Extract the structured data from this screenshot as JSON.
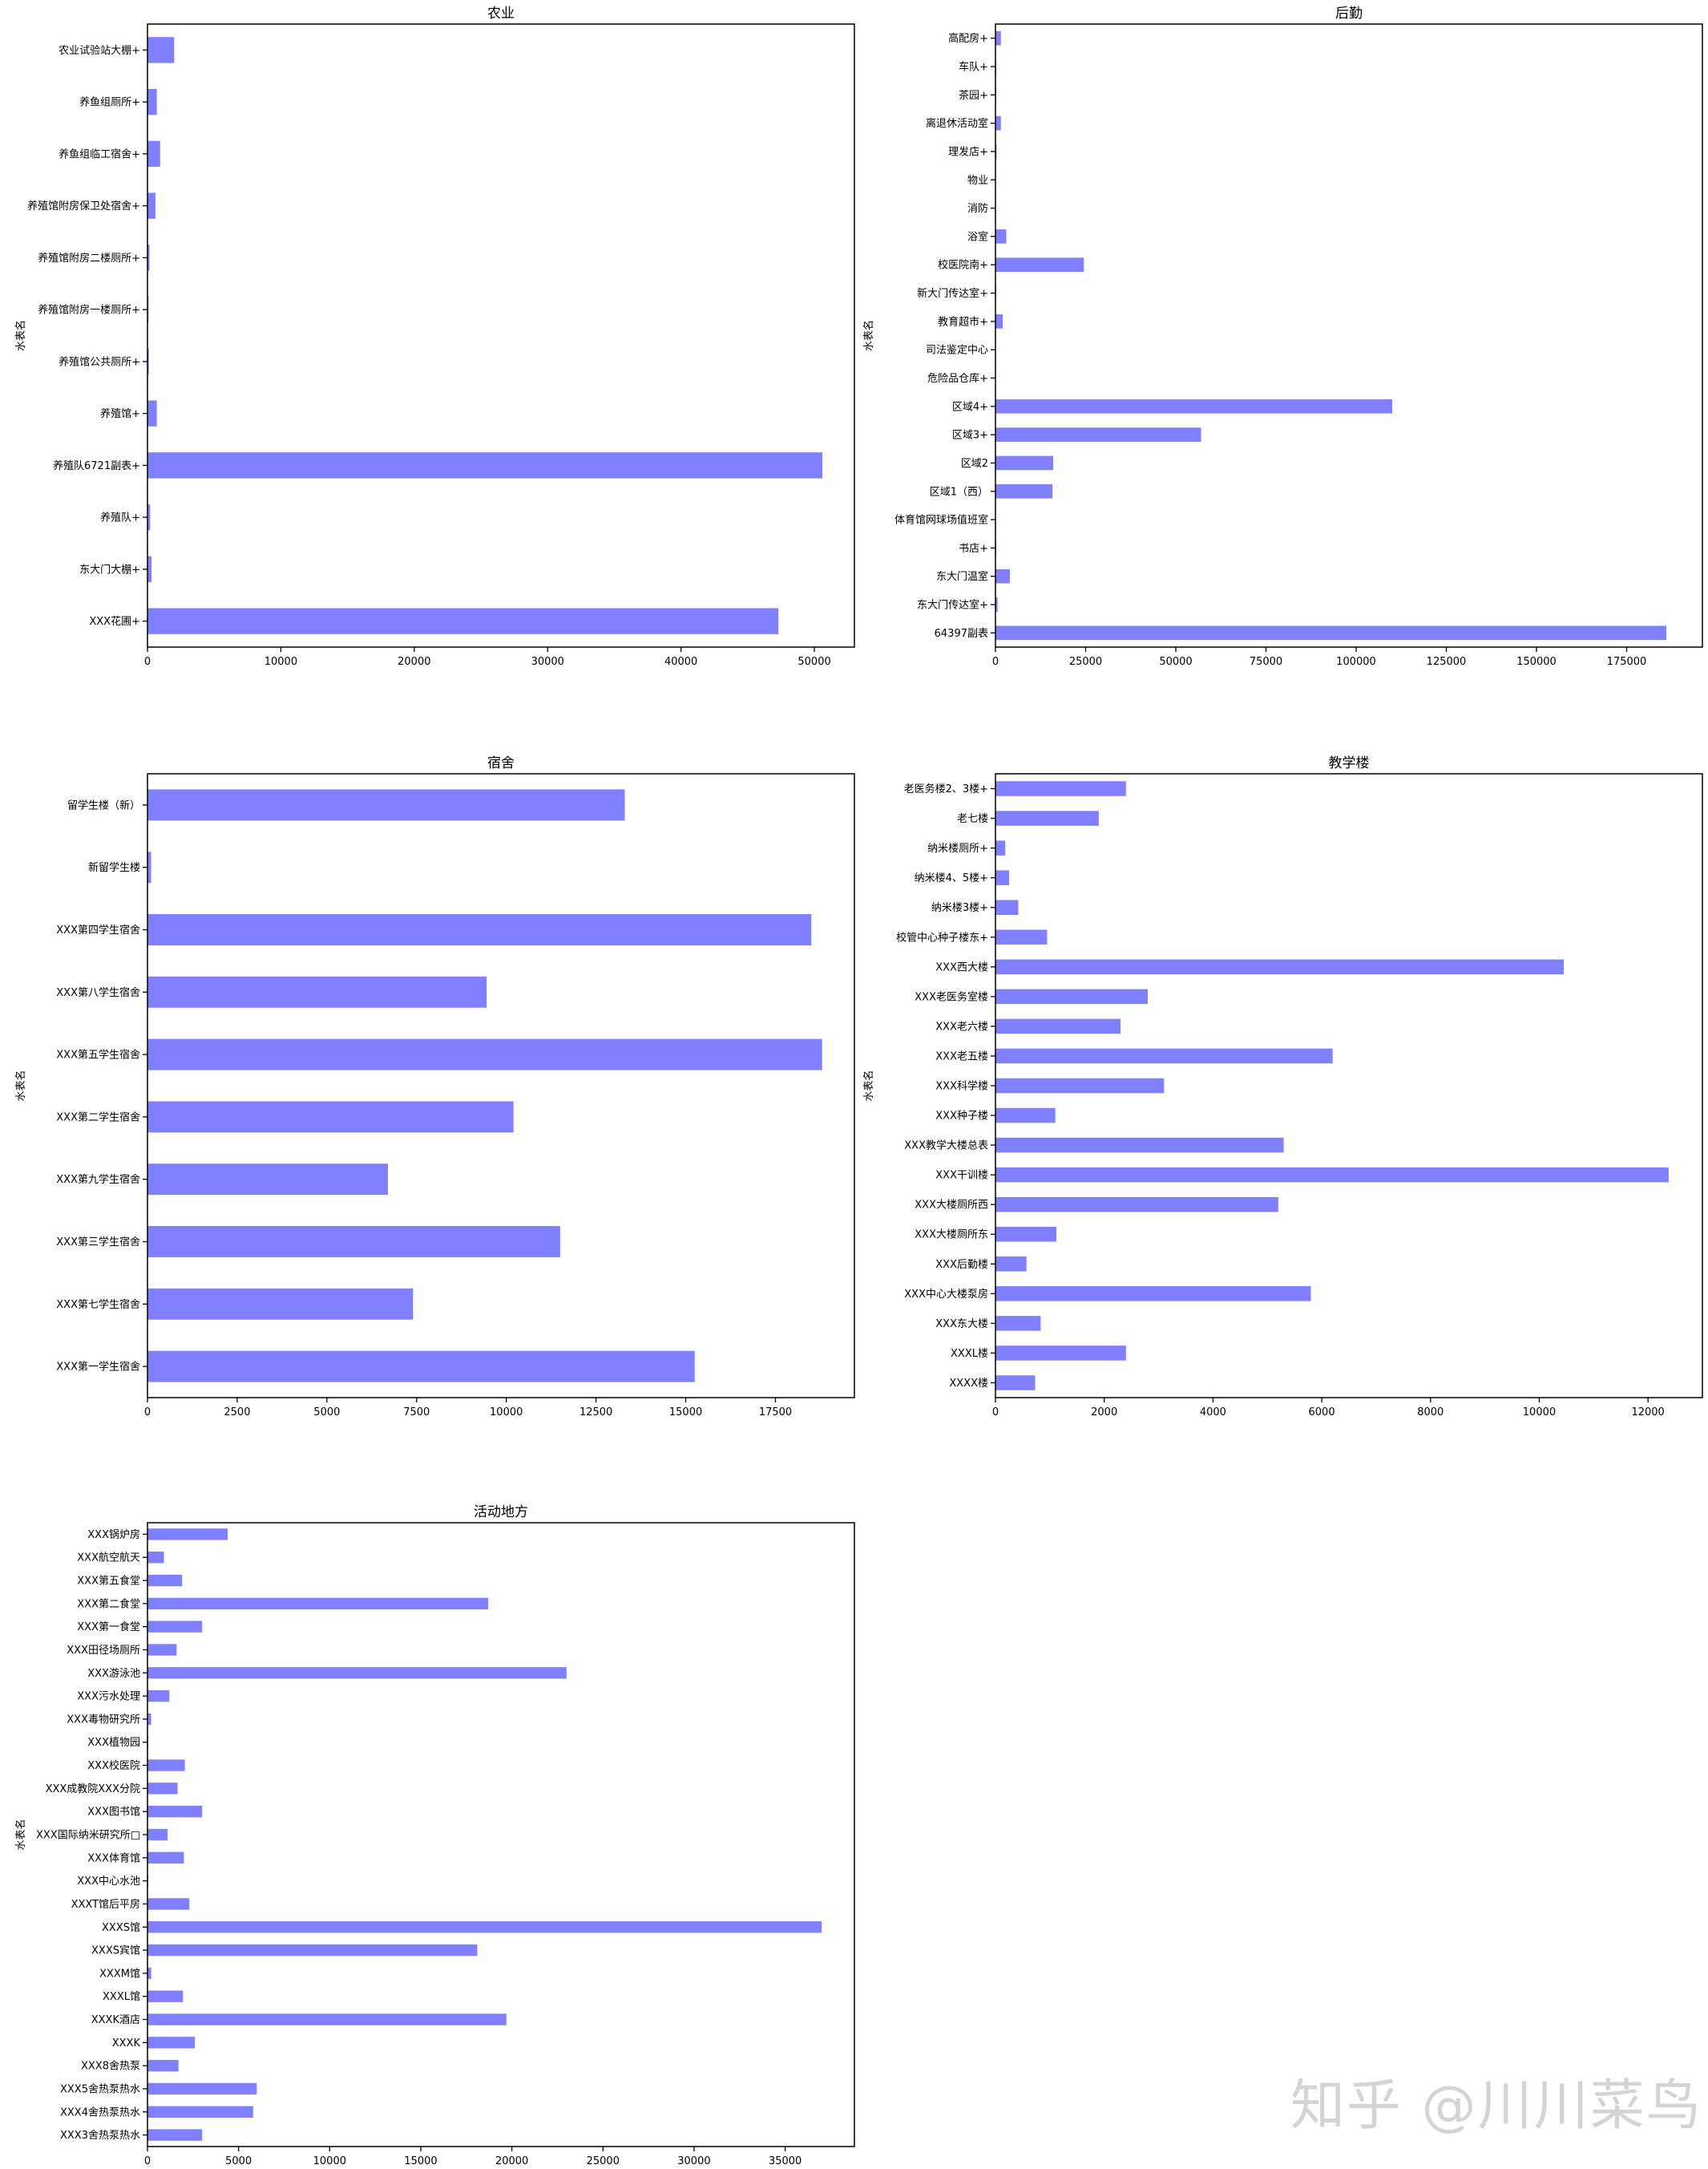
{
  "colors": {
    "bar": "#8080ff",
    "axis": "#000000",
    "background": "#ffffff"
  },
  "watermark": "知乎 @川川菜鸟",
  "chart_data": [
    {
      "type": "bar",
      "orientation": "horizontal",
      "title": "农业",
      "ylabel": "水表名",
      "xlabel": "",
      "xlim": [
        0,
        53000
      ],
      "xticks": [
        0,
        10000,
        20000,
        30000,
        40000,
        50000
      ],
      "categories": [
        "农业试验站大棚+",
        "养鱼组厕所+",
        "养鱼组临工宿舍+",
        "养殖馆附房保卫处宿舍+",
        "养殖馆附房二楼厕所+",
        "养殖馆附房一楼厕所+",
        "养殖馆公共厕所+",
        "养殖馆+",
        "养殖队6721副表+",
        "养殖队+",
        "东大门大棚+",
        "XXX花圃+"
      ],
      "values": [
        2000,
        700,
        950,
        600,
        150,
        80,
        100,
        700,
        50600,
        200,
        300,
        47300
      ]
    },
    {
      "type": "bar",
      "orientation": "horizontal",
      "title": "后勤",
      "ylabel": "水表名",
      "xlabel": "",
      "xlim": [
        0,
        196000
      ],
      "xticks": [
        0,
        25000,
        50000,
        75000,
        100000,
        125000,
        150000,
        175000
      ],
      "categories": [
        "高配房+",
        "车队+",
        "茶园+",
        "离退休活动室",
        "理发店+",
        "物业",
        "消防",
        "浴室",
        "校医院南+",
        "新大门传达室+",
        "教育超市+",
        "司法鉴定中心",
        "危险品仓库+",
        "区域4+",
        "区域3+",
        "区域2",
        "区域1（西）",
        "体育馆网球场值班室",
        "书店+",
        "东大门温室",
        "东大门传达室+",
        "64397副表"
      ],
      "values": [
        1500,
        200,
        200,
        1500,
        300,
        100,
        100,
        3000,
        24500,
        200,
        2000,
        100,
        100,
        110000,
        57000,
        16000,
        15800,
        100,
        200,
        4000,
        600,
        186000
      ]
    },
    {
      "type": "bar",
      "orientation": "horizontal",
      "title": "宿舍",
      "ylabel": "水表名",
      "xlabel": "",
      "xlim": [
        0,
        19700
      ],
      "xticks": [
        0,
        2500,
        5000,
        7500,
        10000,
        12500,
        15000,
        17500
      ],
      "categories": [
        "留学生楼（新）",
        "新留学生楼",
        "XXX第四学生宿舍",
        "XXX第八学生宿舍",
        "XXX第五学生宿舍",
        "XXX第二学生宿舍",
        "XXX第九学生宿舍",
        "XXX第三学生宿舍",
        "XXX第七学生宿舍",
        "XXX第一学生宿舍"
      ],
      "values": [
        13300,
        100,
        18500,
        9450,
        18800,
        10200,
        6700,
        11500,
        7400,
        15250
      ]
    },
    {
      "type": "bar",
      "orientation": "horizontal",
      "title": "教学楼",
      "ylabel": "水表名",
      "xlabel": "",
      "xlim": [
        0,
        13000
      ],
      "xticks": [
        0,
        2000,
        4000,
        6000,
        8000,
        10000,
        12000
      ],
      "categories": [
        "老医务楼2、3楼+",
        "老七楼",
        "纳米楼厕所+",
        "纳米楼4、5楼+",
        "纳米楼3楼+",
        "校管中心种子楼东+",
        "XXX西大楼",
        "XXX老医务室楼",
        "XXX老六楼",
        "XXX老五楼",
        "XXX科学楼",
        "XXX种子楼",
        "XXX教学大楼总表",
        "XXX干训楼",
        "XXX大楼厕所西",
        "XXX大楼厕所东",
        "XXX后勤楼",
        "XXX中心大楼泵房",
        "XXX东大楼",
        "XXXL楼",
        "XXXX楼"
      ],
      "values": [
        2400,
        1900,
        180,
        250,
        420,
        950,
        10450,
        2800,
        2300,
        6200,
        3100,
        1100,
        5300,
        12380,
        5200,
        1120,
        570,
        5800,
        830,
        2400,
        730
      ]
    },
    {
      "type": "bar",
      "orientation": "horizontal",
      "title": "活动地方",
      "ylabel": "水表名",
      "xlabel": "",
      "xlim": [
        0,
        38800
      ],
      "xticks": [
        0,
        5000,
        10000,
        15000,
        20000,
        25000,
        30000,
        35000
      ],
      "categories": [
        "XXX锅炉房",
        "XXX航空航天",
        "XXX第五食堂",
        "XXX第二食堂",
        "XXX第一食堂",
        "XXX田径场厕所",
        "XXX游泳池",
        "XXX污水处理",
        "XXX毒物研究所",
        "XXX植物园",
        "XXX校医院",
        "XXX成教院XXX分院",
        "XXX图书馆",
        "XXX国际纳米研究所□",
        "XXX体育馆",
        "XXX中心水池",
        "XXXT馆后平房",
        "XXXS馆",
        "XXXS宾馆",
        "XXXM馆",
        "XXXL馆",
        "XXXK酒店",
        "XXXK",
        "XXX8舍热泵",
        "XXX5舍热泵热水",
        "XXX4舍热泵热水",
        "XXX3舍热泵热水"
      ],
      "values": [
        4400,
        900,
        1900,
        18700,
        3000,
        1600,
        23000,
        1200,
        200,
        50,
        2050,
        1650,
        3000,
        1100,
        2000,
        50,
        2300,
        37000,
        18100,
        200,
        1950,
        19700,
        2600,
        1700,
        6000,
        5800,
        3000
      ]
    }
  ]
}
